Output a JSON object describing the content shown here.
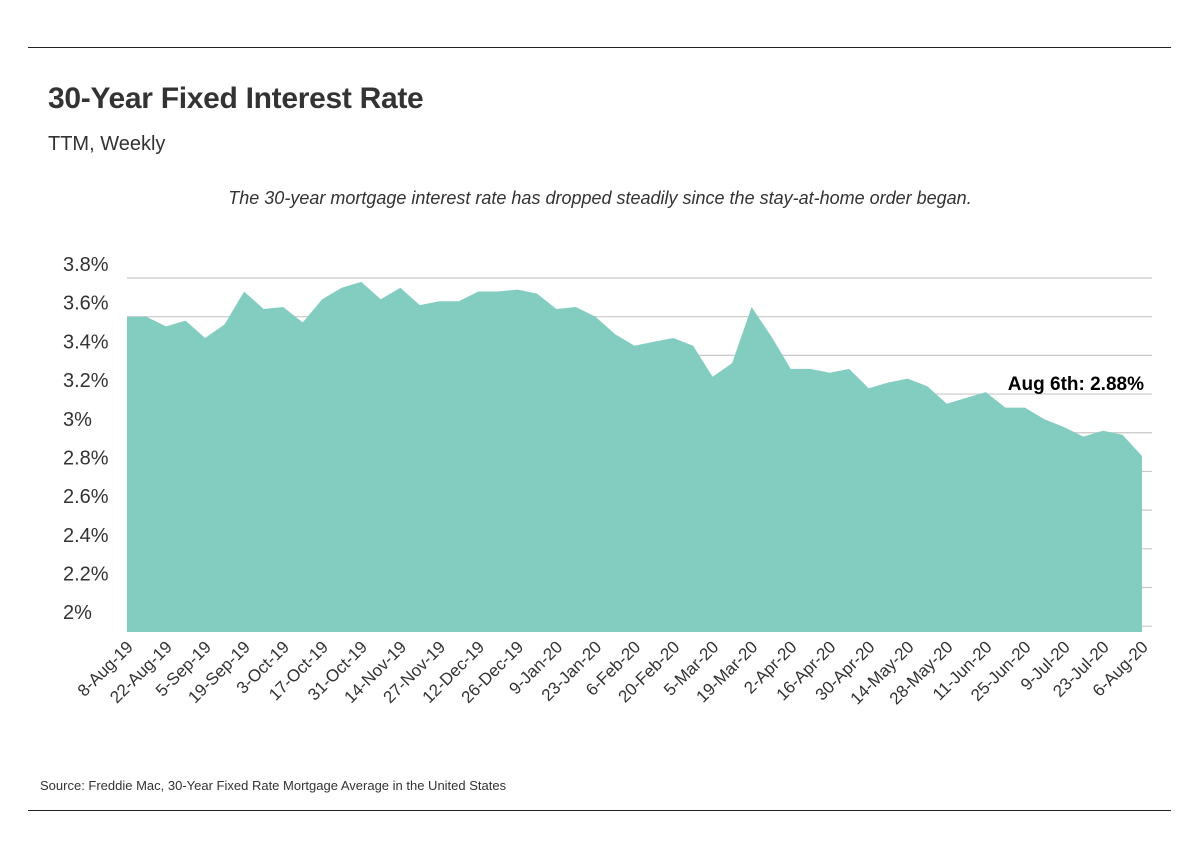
{
  "header": {
    "title": "30-Year Fixed Interest Rate",
    "subtitle": "TTM, Weekly",
    "note": "The 30-year mortgage interest rate has dropped steadily since the stay-at-home order began."
  },
  "footer": {
    "source": "Source:  Freddie Mac, 30-Year Fixed Rate Mortgage Average in the United States"
  },
  "colors": {
    "area_fill": "#83cdc0",
    "grid": "#c8c8c8",
    "text": "#333333"
  },
  "chart_data": {
    "type": "area",
    "title": "30-Year Fixed Interest Rate",
    "subtitle": "TTM, Weekly",
    "x_tick_labels": [
      "8-Aug-19",
      "22-Aug-19",
      "5-Sep-19",
      "19-Sep-19",
      "3-Oct-19",
      "17-Oct-19",
      "31-Oct-19",
      "14-Nov-19",
      "27-Nov-19",
      "12-Dec-19",
      "26-Dec-19",
      "9-Jan-20",
      "23-Jan-20",
      "6-Feb-20",
      "20-Feb-20",
      "5-Mar-20",
      "19-Mar-20",
      "2-Apr-20",
      "16-Apr-20",
      "30-Apr-20",
      "14-May-20",
      "28-May-20",
      "11-Jun-20",
      "25-Jun-20",
      "9-Jul-20",
      "23-Jul-20",
      "6-Aug-20"
    ],
    "y_tick_labels": [
      "2%",
      "2.2%",
      "2.4%",
      "2.6%",
      "2.8%",
      "3%",
      "3.2%",
      "3.4%",
      "3.6%",
      "3.8%"
    ],
    "y_ticks": [
      2.0,
      2.2,
      2.4,
      2.6,
      2.8,
      3.0,
      3.2,
      3.4,
      3.6,
      3.8
    ],
    "ylim": [
      1.97,
      3.8
    ],
    "grid": true,
    "series": [
      {
        "values": [
          3.6,
          3.6,
          3.55,
          3.58,
          3.49,
          3.56,
          3.73,
          3.64,
          3.65,
          3.57,
          3.69,
          3.75,
          3.78,
          3.69,
          3.75,
          3.66,
          3.68,
          3.68,
          3.73,
          3.73,
          3.74,
          3.72,
          3.64,
          3.65,
          3.6,
          3.51,
          3.45,
          3.47,
          3.49,
          3.45,
          3.29,
          3.36,
          3.65,
          3.5,
          3.33,
          3.33,
          3.31,
          3.33,
          3.23,
          3.26,
          3.28,
          3.24,
          3.15,
          3.18,
          3.21,
          3.13,
          3.13,
          3.07,
          3.03,
          2.98,
          3.01,
          2.99,
          2.88
        ]
      }
    ],
    "annotation": {
      "text": "Aug 6th: 2.88%"
    }
  }
}
